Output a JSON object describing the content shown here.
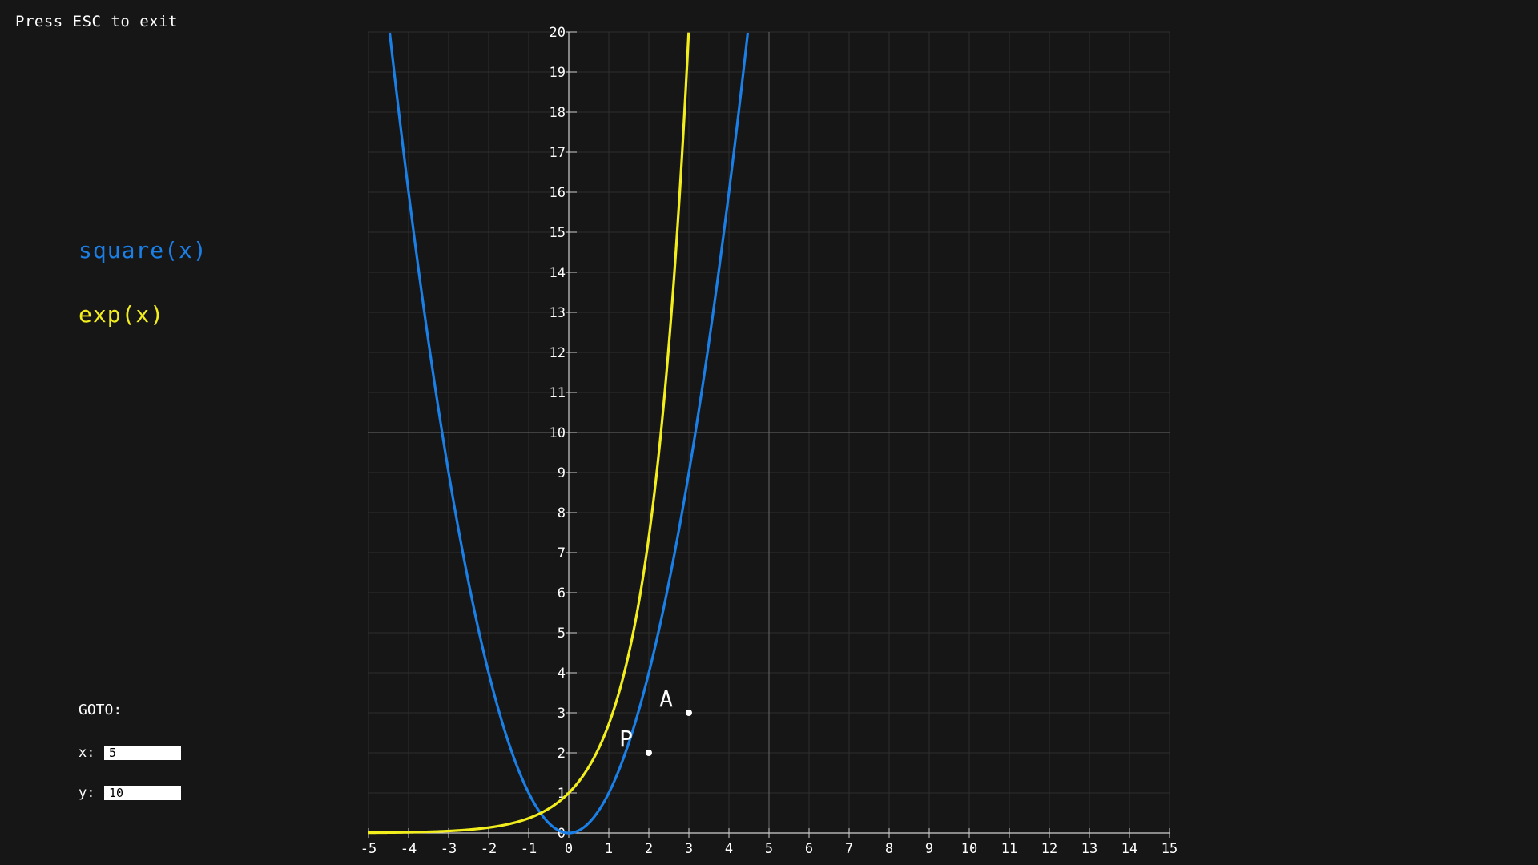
{
  "window": {
    "exit_hint": "Press ESC to exit"
  },
  "functions": [
    {
      "label": "square(x)",
      "color": "#1a7fe6"
    },
    {
      "label": "exp(x)",
      "color": "#f2ee1d"
    }
  ],
  "goto": {
    "title": "GOTO:",
    "x_label": "x:",
    "x_value": "5",
    "y_label": "y:",
    "y_value": "10"
  },
  "points": [
    {
      "name": "A",
      "x": 3,
      "y": 3
    },
    {
      "name": "P",
      "x": 2,
      "y": 2
    }
  ],
  "colors": {
    "background": "#161616",
    "grid": "#2e2e2e",
    "axis": "#d0d0d0",
    "crosshair": "#6a6a6a",
    "square": "#1a7fe6",
    "exp": "#f2ee1d",
    "point": "#ffffff"
  },
  "chart_data": {
    "type": "line",
    "title": "",
    "xlabel": "",
    "ylabel": "",
    "xlim": [
      -5,
      15
    ],
    "ylim": [
      0,
      20
    ],
    "x_ticks": [
      "-5",
      "-4",
      "-3",
      "-2",
      "-1",
      "0",
      "1",
      "2",
      "3",
      "4",
      "5",
      "6",
      "7",
      "8",
      "9",
      "10",
      "11",
      "12",
      "13",
      "14",
      "15"
    ],
    "y_ticks": [
      "0",
      "1",
      "2",
      "3",
      "4",
      "5",
      "6",
      "7",
      "8",
      "9",
      "10",
      "11",
      "12",
      "13",
      "14",
      "15",
      "16",
      "17",
      "18",
      "19",
      "20"
    ],
    "grid": true,
    "crosshair": {
      "x": 5,
      "y": 10
    },
    "series": [
      {
        "name": "square(x)",
        "function": "x^2",
        "style": "line",
        "color": "#1a7fe6"
      },
      {
        "name": "exp(x)",
        "function": "e^x",
        "style": "line",
        "color": "#f2ee1d"
      }
    ]
  }
}
